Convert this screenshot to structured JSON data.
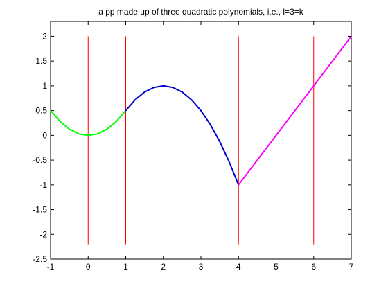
{
  "chart_data": {
    "type": "line",
    "title": "a pp made up of three quadratic polynomials, i.e., l=3=k",
    "xlabel": "",
    "ylabel": "",
    "xlim": [
      -1,
      7
    ],
    "ylim": [
      -2.5,
      2.3
    ],
    "x_ticks": [
      "-1",
      "0",
      "1",
      "2",
      "3",
      "4",
      "5",
      "6",
      "7"
    ],
    "y_ticks": [
      "2",
      "1.5",
      "1",
      "0.5",
      "0",
      "-0.5",
      "-1",
      "-1.5",
      "-2",
      "-2.5"
    ],
    "grid": false,
    "series": [
      {
        "color": "#00ff00",
        "x": [
          -1,
          -0.75,
          -0.5,
          -0.25,
          0,
          0.25,
          0.5,
          0.75,
          1
        ],
        "y": [
          0.5,
          0.2813,
          0.125,
          0.0313,
          0,
          0.0313,
          0.125,
          0.2813,
          0.5
        ]
      },
      {
        "color": "#0000cc",
        "x": [
          1,
          1.25,
          1.5,
          1.75,
          2,
          2.25,
          2.5,
          2.75,
          3,
          3.25,
          3.5,
          3.75,
          4
        ],
        "y": [
          0.5,
          0.7188,
          0.875,
          0.9688,
          1,
          0.9688,
          0.875,
          0.7188,
          0.5,
          0.2188,
          -0.125,
          -0.5313,
          -1
        ]
      },
      {
        "color": "#ff00ff",
        "x": [
          4,
          5,
          6,
          7
        ],
        "y": [
          -1,
          0,
          1,
          2
        ]
      }
    ],
    "vlines": {
      "color": "#ff0000",
      "x": [
        0,
        1,
        4,
        6
      ],
      "y_range": [
        -2.2,
        2
      ]
    }
  }
}
